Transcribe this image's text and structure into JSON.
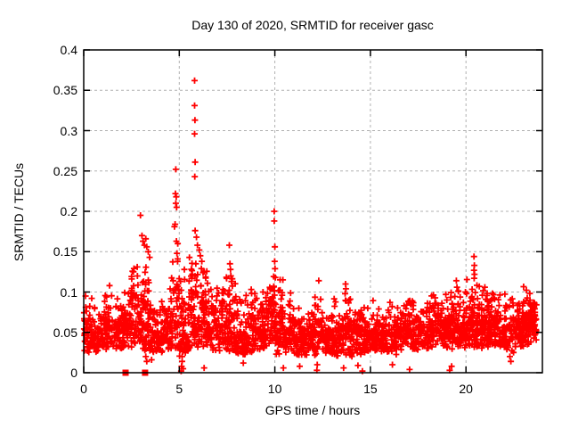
{
  "window": {
    "background": "#ffffff"
  },
  "chart_data": {
    "type": "scatter",
    "title": "Day 130 of 2020, SRMTID for receiver gasc",
    "xlabel": "GPS time / hours",
    "ylabel": "SRMTID / TECUs",
    "xlim": [
      0,
      24
    ],
    "ylim": [
      0,
      0.4
    ],
    "xticks": [
      {
        "v": 0,
        "label": "0"
      },
      {
        "v": 5,
        "label": "5"
      },
      {
        "v": 10,
        "label": "10"
      },
      {
        "v": 15,
        "label": "15"
      },
      {
        "v": 20,
        "label": "20"
      }
    ],
    "yticks": [
      {
        "v": 0,
        "label": "0"
      },
      {
        "v": 0.05,
        "label": "0.05"
      },
      {
        "v": 0.1,
        "label": "0.1"
      },
      {
        "v": 0.15,
        "label": "0.15"
      },
      {
        "v": 0.2,
        "label": "0.2"
      },
      {
        "v": 0.25,
        "label": "0.25"
      },
      {
        "v": 0.3,
        "label": "0.3"
      },
      {
        "v": 0.35,
        "label": "0.35"
      },
      {
        "v": 0.4,
        "label": "0.4"
      }
    ],
    "grid": true,
    "legend": "none",
    "marker": "plus",
    "marker_color": "#ff0000",
    "grid_color": "#b0b0b0",
    "axis_color": "#000000",
    "text_color": "#000000",
    "seed": 1300,
    "description": "Dense cloud of SRMTID values ~0.02-0.11 TECUs across 0-23.7 h; spikes near h3 (0.195), h4.8 (0.25), h5.8 (0.36 peak), h7.6 (0.16), h10 (0.20), h20.4 (0.14); occasional near-zero dropouts; filled squares at exactly 0 near h2.2 and h3.2.",
    "cloud_bands": [
      [
        0.0,
        0.5,
        55,
        0.025,
        0.095
      ],
      [
        0.5,
        1.0,
        55,
        0.025,
        0.09
      ],
      [
        1.0,
        1.5,
        55,
        0.028,
        0.108
      ],
      [
        1.5,
        2.0,
        55,
        0.028,
        0.095
      ],
      [
        2.0,
        2.5,
        60,
        0.03,
        0.12
      ],
      [
        2.5,
        3.0,
        60,
        0.03,
        0.135
      ],
      [
        3.0,
        3.5,
        65,
        0.025,
        0.14
      ],
      [
        3.5,
        4.0,
        55,
        0.02,
        0.09
      ],
      [
        4.0,
        4.5,
        55,
        0.025,
        0.105
      ],
      [
        4.5,
        5.0,
        60,
        0.03,
        0.155
      ],
      [
        5.0,
        5.5,
        60,
        0.015,
        0.135
      ],
      [
        5.5,
        6.0,
        65,
        0.03,
        0.165
      ],
      [
        6.0,
        6.5,
        65,
        0.03,
        0.148
      ],
      [
        6.5,
        7.0,
        55,
        0.028,
        0.115
      ],
      [
        7.0,
        7.5,
        55,
        0.025,
        0.12
      ],
      [
        7.5,
        8.0,
        60,
        0.025,
        0.135
      ],
      [
        8.0,
        8.5,
        55,
        0.02,
        0.1
      ],
      [
        8.5,
        9.0,
        55,
        0.025,
        0.105
      ],
      [
        9.0,
        9.5,
        55,
        0.028,
        0.105
      ],
      [
        9.5,
        10.0,
        55,
        0.03,
        0.13
      ],
      [
        10.0,
        10.5,
        60,
        0.022,
        0.12
      ],
      [
        10.5,
        11.0,
        55,
        0.025,
        0.1
      ],
      [
        11.0,
        11.5,
        55,
        0.02,
        0.09
      ],
      [
        11.5,
        12.0,
        55,
        0.02,
        0.088
      ],
      [
        12.0,
        12.5,
        55,
        0.02,
        0.1
      ],
      [
        12.5,
        13.0,
        55,
        0.02,
        0.09
      ],
      [
        13.0,
        13.5,
        55,
        0.02,
        0.1
      ],
      [
        13.5,
        14.0,
        55,
        0.02,
        0.112
      ],
      [
        14.0,
        14.5,
        55,
        0.02,
        0.09
      ],
      [
        14.5,
        15.0,
        55,
        0.025,
        0.09
      ],
      [
        15.0,
        15.5,
        55,
        0.025,
        0.095
      ],
      [
        15.5,
        16.0,
        55,
        0.025,
        0.092
      ],
      [
        16.0,
        16.5,
        55,
        0.022,
        0.095
      ],
      [
        16.5,
        17.0,
        55,
        0.025,
        0.098
      ],
      [
        17.0,
        17.5,
        55,
        0.028,
        0.1
      ],
      [
        17.5,
        18.0,
        55,
        0.03,
        0.1
      ],
      [
        18.0,
        18.5,
        55,
        0.03,
        0.105
      ],
      [
        18.5,
        19.0,
        55,
        0.03,
        0.1
      ],
      [
        19.0,
        19.5,
        60,
        0.028,
        0.112
      ],
      [
        19.5,
        20.0,
        60,
        0.03,
        0.108
      ],
      [
        20.0,
        20.5,
        65,
        0.03,
        0.12
      ],
      [
        20.5,
        21.0,
        65,
        0.03,
        0.115
      ],
      [
        21.0,
        21.5,
        60,
        0.03,
        0.11
      ],
      [
        21.5,
        22.0,
        60,
        0.03,
        0.112
      ],
      [
        22.0,
        22.5,
        55,
        0.025,
        0.105
      ],
      [
        22.5,
        23.0,
        60,
        0.03,
        0.1
      ],
      [
        23.0,
        23.4,
        70,
        0.035,
        0.112
      ],
      [
        23.4,
        23.7,
        40,
        0.04,
        0.105
      ]
    ],
    "outliers": [
      [
        0.1,
        0.095
      ],
      [
        1.35,
        0.108
      ],
      [
        2.6,
        0.125
      ],
      [
        2.8,
        0.131
      ],
      [
        2.97,
        0.195
      ],
      [
        3.05,
        0.17
      ],
      [
        3.1,
        0.163
      ],
      [
        3.18,
        0.158
      ],
      [
        3.25,
        0.166
      ],
      [
        3.3,
        0.156
      ],
      [
        3.38,
        0.15
      ],
      [
        3.45,
        0.143
      ],
      [
        4.75,
        0.181
      ],
      [
        4.82,
        0.252
      ],
      [
        4.8,
        0.222
      ],
      [
        4.84,
        0.218
      ],
      [
        4.82,
        0.21
      ],
      [
        4.86,
        0.205
      ],
      [
        4.78,
        0.184
      ],
      [
        4.85,
        0.163
      ],
      [
        4.92,
        0.16
      ],
      [
        4.88,
        0.148
      ],
      [
        5.8,
        0.362
      ],
      [
        5.8,
        0.331
      ],
      [
        5.82,
        0.313
      ],
      [
        5.8,
        0.296
      ],
      [
        5.83,
        0.261
      ],
      [
        5.81,
        0.243
      ],
      [
        5.83,
        0.176
      ],
      [
        5.9,
        0.168
      ],
      [
        5.95,
        0.158
      ],
      [
        6.05,
        0.152
      ],
      [
        6.1,
        0.145
      ],
      [
        6.18,
        0.138
      ],
      [
        7.62,
        0.158
      ],
      [
        7.65,
        0.135
      ],
      [
        7.68,
        0.128
      ],
      [
        7.7,
        0.12
      ],
      [
        7.73,
        0.113
      ],
      [
        9.97,
        0.2
      ],
      [
        9.97,
        0.188
      ],
      [
        10.0,
        0.156
      ],
      [
        9.99,
        0.138
      ],
      [
        10.01,
        0.129
      ],
      [
        10.03,
        0.118
      ],
      [
        9.95,
        0.107
      ],
      [
        10.42,
        0.115
      ],
      [
        12.3,
        0.114
      ],
      [
        13.7,
        0.11
      ],
      [
        13.72,
        0.104
      ],
      [
        13.68,
        0.098
      ],
      [
        19.5,
        0.114
      ],
      [
        19.53,
        0.106
      ],
      [
        20.42,
        0.144
      ],
      [
        20.44,
        0.133
      ],
      [
        20.42,
        0.127
      ],
      [
        20.45,
        0.122
      ],
      [
        20.43,
        0.117
      ],
      [
        3.2,
        0.028
      ],
      [
        3.25,
        0.02
      ],
      [
        3.3,
        0.014
      ],
      [
        3.55,
        0.016
      ],
      [
        5.1,
        0.002
      ],
      [
        5.12,
        0.008
      ],
      [
        5.15,
        0.014
      ],
      [
        5.15,
        0.02
      ],
      [
        5.18,
        0.026
      ],
      [
        5.2,
        0.005
      ],
      [
        6.3,
        0.006
      ],
      [
        8.35,
        0.012
      ],
      [
        10.45,
        0.006
      ],
      [
        11.3,
        0.008
      ],
      [
        12.2,
        0.003
      ],
      [
        12.22,
        0.01
      ],
      [
        13.6,
        0.006
      ],
      [
        14.35,
        0.009
      ],
      [
        14.58,
        0.002
      ],
      [
        16.15,
        0.01
      ],
      [
        17.05,
        0.004
      ],
      [
        19.15,
        0.003
      ],
      [
        19.25,
        0.008
      ],
      [
        22.3,
        0.02
      ],
      [
        22.35,
        0.014
      ]
    ],
    "zero_markers": {
      "marker": "filled-square",
      "x": [
        2.19,
        3.21
      ],
      "y": 0
    }
  }
}
